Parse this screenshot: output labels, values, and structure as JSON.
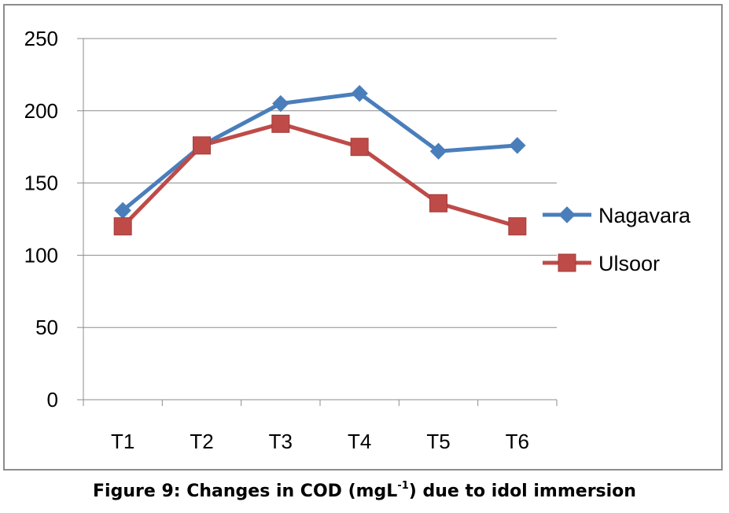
{
  "chart_data": {
    "type": "line",
    "categories": [
      "T1",
      "T2",
      "T3",
      "T4",
      "T5",
      "T6"
    ],
    "series": [
      {
        "name": "Nagavara",
        "values": [
          131,
          176,
          205,
          212,
          172,
          176
        ],
        "color": "#4a7ebb",
        "marker": "diamond"
      },
      {
        "name": "Ulsoor",
        "values": [
          120,
          176,
          191,
          175,
          136,
          120
        ],
        "color": "#be4b48",
        "marker": "square"
      }
    ],
    "ylim": [
      0,
      250
    ],
    "yticks": [
      0,
      50,
      100,
      150,
      200,
      250
    ],
    "grid": true,
    "legend_position": "right"
  },
  "caption": {
    "before": "Figure 9: Changes in COD (mgL",
    "superscript": "-1",
    "after": ") due to idol immersion"
  }
}
